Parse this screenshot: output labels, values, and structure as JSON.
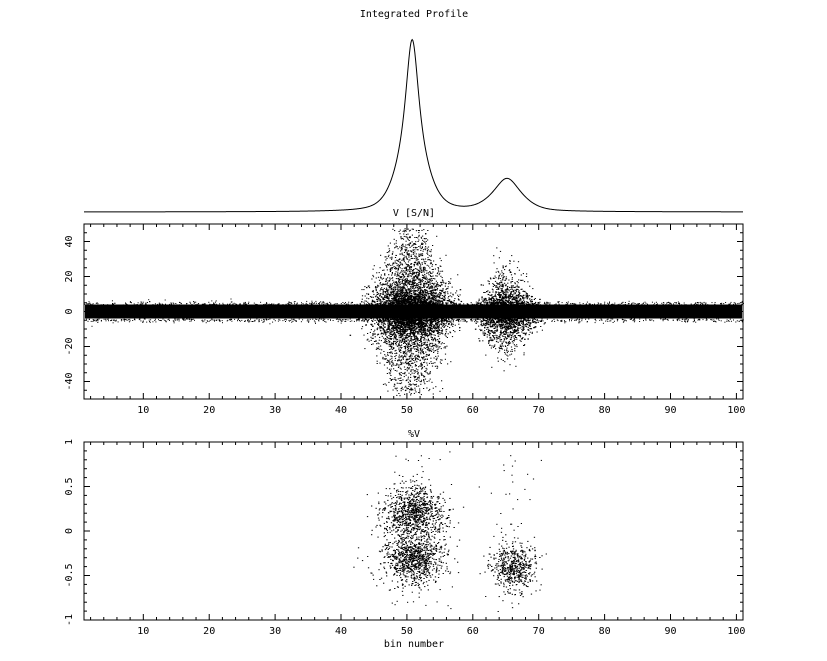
{
  "chart_data": [
    {
      "type": "line",
      "title": "Integrated Profile",
      "xlim": [
        1,
        101
      ],
      "x_axis_shown": false,
      "y_axis_shown": false,
      "peaks": [
        {
          "center": 50.8,
          "relative_height": 1.0
        },
        {
          "center": 65.2,
          "relative_height": 0.19
        }
      ],
      "line_color": "#000000"
    },
    {
      "type": "scatter",
      "title": "V [S/N]",
      "xlim": [
        1,
        101
      ],
      "ylim": [
        -50,
        50
      ],
      "xticks": [
        "10",
        "20",
        "30",
        "40",
        "50",
        "60",
        "70",
        "80",
        "90",
        "100"
      ],
      "yticks": [
        "-40",
        "-20",
        "0",
        "20",
        "40"
      ],
      "baseline_noise_band": [
        -4,
        4
      ],
      "signal_regions": [
        {
          "x_range": [
            44,
            57
          ],
          "y_spread": 50
        },
        {
          "x_range": [
            60,
            70
          ],
          "y_spread": 25
        }
      ],
      "point_color": "#000000",
      "grid": false
    },
    {
      "type": "scatter",
      "title": "%V",
      "xlabel": "bin number",
      "xlim": [
        1,
        101
      ],
      "ylim": [
        -1,
        1
      ],
      "xticks": [
        "10",
        "20",
        "30",
        "40",
        "50",
        "60",
        "70",
        "80",
        "90",
        "100"
      ],
      "yticks": [
        "-1",
        "-0.5",
        "0",
        "0.5",
        "1"
      ],
      "clusters": [
        {
          "x_center": 51,
          "y_center": 0.22
        },
        {
          "x_center": 51,
          "y_center": -0.3
        },
        {
          "x_center": 66,
          "y_center": -0.4
        }
      ],
      "point_color": "#000000",
      "grid": false
    }
  ]
}
